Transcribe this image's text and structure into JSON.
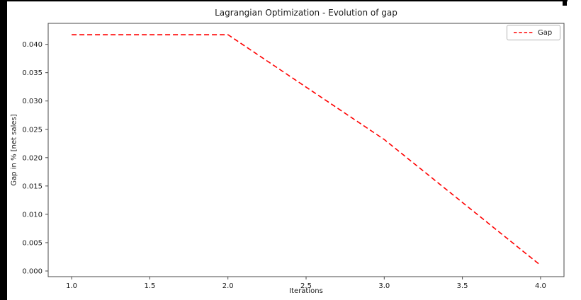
{
  "window": {
    "border_color": "#000000",
    "background": "#ffffff"
  },
  "chart_data": {
    "type": "line",
    "title": "Lagrangian Optimization - Evolution of gap",
    "xlabel": "Iterations",
    "ylabel": "Gap in % [net sales]",
    "series": [
      {
        "name": "Gap",
        "x": [
          1.0,
          2.0,
          3.0,
          4.0
        ],
        "y": [
          0.0417,
          0.0417,
          0.0232,
          0.001
        ],
        "color": "#ff0000",
        "linestyle": "dashed"
      }
    ],
    "xlim": [
      0.85,
      4.15
    ],
    "ylim": [
      -0.001,
      0.0437
    ],
    "xticks": [
      1.0,
      1.5,
      2.0,
      2.5,
      3.0,
      3.5,
      4.0
    ],
    "xtick_labels": [
      "1.0",
      "1.5",
      "2.0",
      "2.5",
      "3.0",
      "3.5",
      "4.0"
    ],
    "yticks": [
      0.0,
      0.005,
      0.01,
      0.015,
      0.02,
      0.025,
      0.03,
      0.035,
      0.04
    ],
    "ytick_labels": [
      "0.000",
      "0.005",
      "0.010",
      "0.015",
      "0.020",
      "0.025",
      "0.030",
      "0.035",
      "0.040"
    ],
    "grid": false,
    "legend": {
      "position": "upper right",
      "entries": [
        "Gap"
      ]
    },
    "axis_color": "#4a4a4a",
    "tick_text_color": "#1a1a1a"
  }
}
